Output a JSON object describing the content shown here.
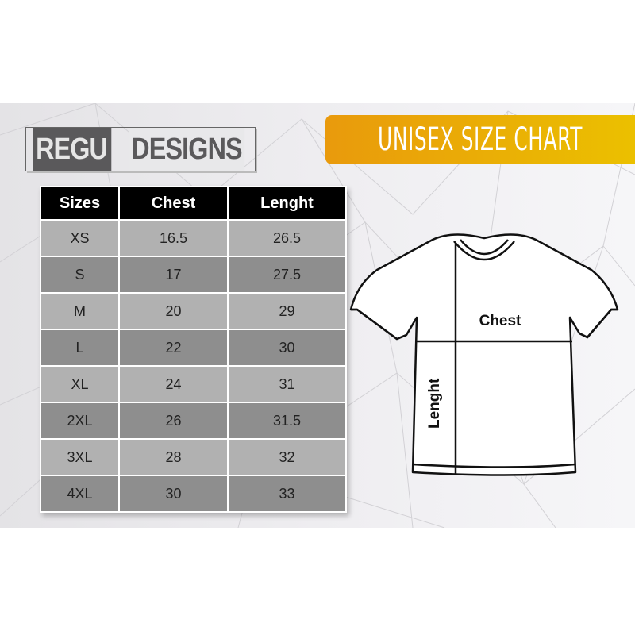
{
  "brand": {
    "part1": "REGU",
    "part2": "DESIGNS"
  },
  "banner": {
    "title": "UNISEX SIZE CHART",
    "color_start": "#e99a0c",
    "color_end": "#ebc000"
  },
  "table": {
    "headers": [
      "Sizes",
      "Chest",
      "Lenght"
    ],
    "rows": [
      [
        "XS",
        "16.5",
        "26.5"
      ],
      [
        "S",
        "17",
        "27.5"
      ],
      [
        "M",
        "20",
        "29"
      ],
      [
        "L",
        "22",
        "30"
      ],
      [
        "XL",
        "24",
        "31"
      ],
      [
        "2XL",
        "26",
        "31.5"
      ],
      [
        "3XL",
        "28",
        "32"
      ],
      [
        "4XL",
        "30",
        "33"
      ]
    ]
  },
  "diagram": {
    "chest_label": "Chest",
    "length_label": "Lenght",
    "icon": "tshirt-icon"
  }
}
